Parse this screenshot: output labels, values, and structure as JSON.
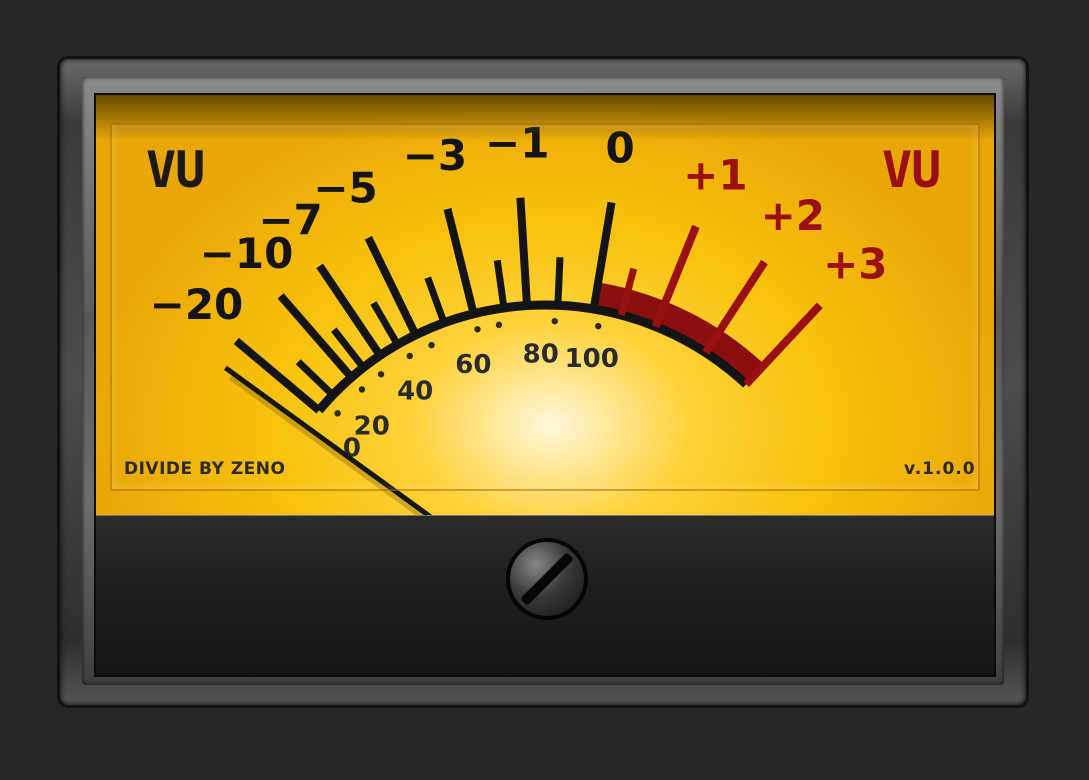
{
  "meter": {
    "vu_left": "VU",
    "vu_right": "VU",
    "brand": "DIVIDE BY ZENO",
    "version": "v.1.0.0",
    "needle_value": -20,
    "colors": {
      "face": "#f8c20c",
      "scale_black": "#141414",
      "scale_red": "#9a1010"
    }
  },
  "db_scale": [
    {
      "label": "−20",
      "value": -20,
      "zone": "normal"
    },
    {
      "label": "−10",
      "value": -10,
      "zone": "normal"
    },
    {
      "label": "−7",
      "value": -7,
      "zone": "normal"
    },
    {
      "label": "−5",
      "value": -5,
      "zone": "normal"
    },
    {
      "label": "−3",
      "value": -3,
      "zone": "normal"
    },
    {
      "label": "−1",
      "value": -1,
      "zone": "normal"
    },
    {
      "label": "0",
      "value": 0,
      "zone": "normal"
    },
    {
      "label": "+1",
      "value": 1,
      "zone": "red"
    },
    {
      "label": "+2",
      "value": 2,
      "zone": "red"
    },
    {
      "label": "+3",
      "value": 3,
      "zone": "red"
    }
  ],
  "percent_scale": [
    {
      "label": "0",
      "value": 0
    },
    {
      "label": "20",
      "value": 20
    },
    {
      "label": "40",
      "value": 40
    },
    {
      "label": "60",
      "value": 60
    },
    {
      "label": "80",
      "value": 80
    },
    {
      "label": "100",
      "value": 100
    }
  ]
}
